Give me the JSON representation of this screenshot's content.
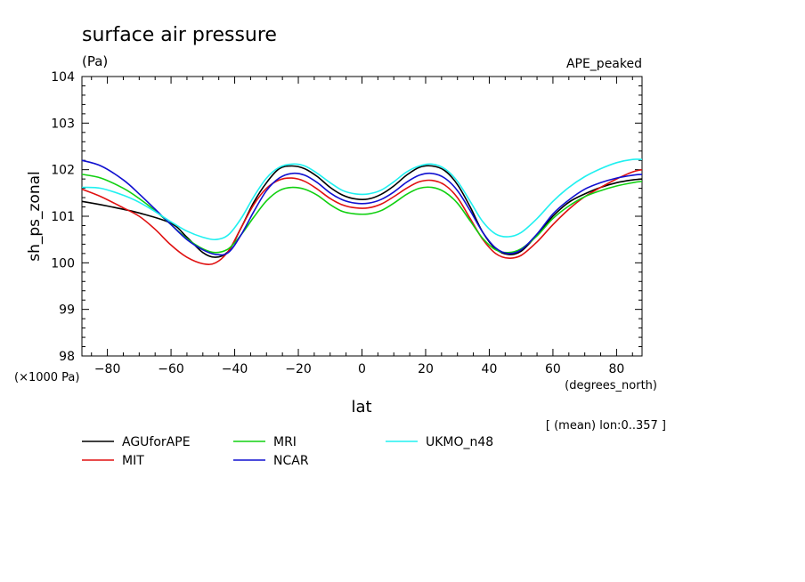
{
  "chart_data": {
    "type": "line",
    "title": "surface air pressure",
    "units": "(Pa)",
    "experiment": "APE_peaked",
    "xlabel": "lat",
    "ylabel": "sh_ps_zonal",
    "x_units": "(degrees_north)",
    "y_scale_note": "(×1000 Pa)",
    "averaging_note": "[ (mean) lon:0..357 ]",
    "xlim": [
      -88,
      88
    ],
    "ylim": [
      98,
      104
    ],
    "x_ticks": [
      -80,
      -60,
      -40,
      -20,
      0,
      20,
      40,
      60,
      80
    ],
    "y_ticks": [
      98,
      99,
      100,
      101,
      102,
      103,
      104
    ],
    "grid": false,
    "legend_position": "bottom",
    "series": [
      {
        "name": "AGUforAPE",
        "color": "#000000",
        "points": [
          [
            -88,
            101.32
          ],
          [
            -80,
            101.22
          ],
          [
            -70,
            101.07
          ],
          [
            -60,
            100.85
          ],
          [
            -55,
            100.55
          ],
          [
            -50,
            100.22
          ],
          [
            -46,
            100.12
          ],
          [
            -42,
            100.25
          ],
          [
            -38,
            100.75
          ],
          [
            -34,
            101.3
          ],
          [
            -30,
            101.72
          ],
          [
            -26,
            102.02
          ],
          [
            -22,
            102.08
          ],
          [
            -18,
            102.02
          ],
          [
            -14,
            101.85
          ],
          [
            -10,
            101.62
          ],
          [
            -6,
            101.45
          ],
          [
            -2,
            101.37
          ],
          [
            2,
            101.37
          ],
          [
            6,
            101.47
          ],
          [
            10,
            101.65
          ],
          [
            14,
            101.88
          ],
          [
            18,
            102.05
          ],
          [
            22,
            102.08
          ],
          [
            26,
            101.98
          ],
          [
            30,
            101.68
          ],
          [
            34,
            101.2
          ],
          [
            38,
            100.65
          ],
          [
            42,
            100.3
          ],
          [
            46,
            100.18
          ],
          [
            50,
            100.25
          ],
          [
            55,
            100.6
          ],
          [
            60,
            101.0
          ],
          [
            65,
            101.3
          ],
          [
            70,
            101.48
          ],
          [
            75,
            101.62
          ],
          [
            80,
            101.72
          ],
          [
            85,
            101.78
          ],
          [
            88,
            101.8
          ]
        ]
      },
      {
        "name": "MIT",
        "color": "#e01010",
        "points": [
          [
            -88,
            101.58
          ],
          [
            -82,
            101.42
          ],
          [
            -75,
            101.18
          ],
          [
            -70,
            101.0
          ],
          [
            -65,
            100.72
          ],
          [
            -60,
            100.38
          ],
          [
            -55,
            100.12
          ],
          [
            -50,
            99.98
          ],
          [
            -46,
            100.0
          ],
          [
            -42,
            100.25
          ],
          [
            -38,
            100.75
          ],
          [
            -34,
            101.25
          ],
          [
            -30,
            101.6
          ],
          [
            -26,
            101.78
          ],
          [
            -22,
            101.82
          ],
          [
            -18,
            101.75
          ],
          [
            -14,
            101.58
          ],
          [
            -10,
            101.38
          ],
          [
            -6,
            101.24
          ],
          [
            -2,
            101.18
          ],
          [
            2,
            101.18
          ],
          [
            6,
            101.26
          ],
          [
            10,
            101.42
          ],
          [
            14,
            101.6
          ],
          [
            18,
            101.74
          ],
          [
            22,
            101.77
          ],
          [
            26,
            101.67
          ],
          [
            30,
            101.4
          ],
          [
            34,
            100.95
          ],
          [
            38,
            100.5
          ],
          [
            42,
            100.2
          ],
          [
            46,
            100.1
          ],
          [
            50,
            100.16
          ],
          [
            55,
            100.45
          ],
          [
            60,
            100.82
          ],
          [
            65,
            101.15
          ],
          [
            70,
            101.42
          ],
          [
            75,
            101.62
          ],
          [
            80,
            101.8
          ],
          [
            85,
            101.95
          ],
          [
            88,
            102.0
          ]
        ]
      },
      {
        "name": "MRI",
        "color": "#10d010",
        "points": [
          [
            -88,
            101.9
          ],
          [
            -82,
            101.82
          ],
          [
            -75,
            101.6
          ],
          [
            -70,
            101.38
          ],
          [
            -65,
            101.12
          ],
          [
            -60,
            100.82
          ],
          [
            -55,
            100.52
          ],
          [
            -50,
            100.3
          ],
          [
            -46,
            100.22
          ],
          [
            -42,
            100.3
          ],
          [
            -38,
            100.6
          ],
          [
            -34,
            100.98
          ],
          [
            -30,
            101.33
          ],
          [
            -26,
            101.55
          ],
          [
            -22,
            101.62
          ],
          [
            -18,
            101.58
          ],
          [
            -14,
            101.45
          ],
          [
            -10,
            101.25
          ],
          [
            -6,
            101.1
          ],
          [
            -2,
            101.05
          ],
          [
            2,
            101.05
          ],
          [
            6,
            101.12
          ],
          [
            10,
            101.28
          ],
          [
            14,
            101.47
          ],
          [
            18,
            101.6
          ],
          [
            22,
            101.62
          ],
          [
            26,
            101.52
          ],
          [
            30,
            101.28
          ],
          [
            34,
            100.9
          ],
          [
            38,
            100.52
          ],
          [
            42,
            100.28
          ],
          [
            46,
            100.22
          ],
          [
            50,
            100.3
          ],
          [
            55,
            100.58
          ],
          [
            60,
            100.95
          ],
          [
            65,
            101.22
          ],
          [
            70,
            101.42
          ],
          [
            75,
            101.55
          ],
          [
            80,
            101.65
          ],
          [
            85,
            101.72
          ],
          [
            88,
            101.75
          ]
        ]
      },
      {
        "name": "NCAR",
        "color": "#1010d0",
        "points": [
          [
            -88,
            102.2
          ],
          [
            -82,
            102.08
          ],
          [
            -75,
            101.78
          ],
          [
            -70,
            101.48
          ],
          [
            -65,
            101.15
          ],
          [
            -60,
            100.82
          ],
          [
            -55,
            100.5
          ],
          [
            -50,
            100.28
          ],
          [
            -46,
            100.18
          ],
          [
            -42,
            100.22
          ],
          [
            -38,
            100.6
          ],
          [
            -34,
            101.1
          ],
          [
            -30,
            101.55
          ],
          [
            -26,
            101.82
          ],
          [
            -22,
            101.92
          ],
          [
            -18,
            101.88
          ],
          [
            -14,
            101.72
          ],
          [
            -10,
            101.5
          ],
          [
            -6,
            101.35
          ],
          [
            -2,
            101.28
          ],
          [
            2,
            101.28
          ],
          [
            6,
            101.36
          ],
          [
            10,
            101.52
          ],
          [
            14,
            101.73
          ],
          [
            18,
            101.88
          ],
          [
            22,
            101.92
          ],
          [
            26,
            101.82
          ],
          [
            30,
            101.55
          ],
          [
            34,
            101.12
          ],
          [
            38,
            100.65
          ],
          [
            42,
            100.32
          ],
          [
            46,
            100.2
          ],
          [
            50,
            100.28
          ],
          [
            55,
            100.62
          ],
          [
            60,
            101.05
          ],
          [
            65,
            101.35
          ],
          [
            70,
            101.58
          ],
          [
            75,
            101.72
          ],
          [
            80,
            101.82
          ],
          [
            85,
            101.88
          ],
          [
            88,
            101.9
          ]
        ]
      },
      {
        "name": "UKMO_n48",
        "color": "#20f0f0",
        "points": [
          [
            -88,
            101.62
          ],
          [
            -82,
            101.6
          ],
          [
            -75,
            101.45
          ],
          [
            -70,
            101.3
          ],
          [
            -65,
            101.1
          ],
          [
            -60,
            100.88
          ],
          [
            -55,
            100.68
          ],
          [
            -50,
            100.55
          ],
          [
            -46,
            100.5
          ],
          [
            -42,
            100.6
          ],
          [
            -38,
            100.95
          ],
          [
            -34,
            101.42
          ],
          [
            -30,
            101.82
          ],
          [
            -26,
            102.05
          ],
          [
            -22,
            102.12
          ],
          [
            -18,
            102.08
          ],
          [
            -14,
            101.92
          ],
          [
            -10,
            101.72
          ],
          [
            -6,
            101.55
          ],
          [
            -2,
            101.48
          ],
          [
            2,
            101.48
          ],
          [
            6,
            101.56
          ],
          [
            10,
            101.74
          ],
          [
            14,
            101.95
          ],
          [
            18,
            102.08
          ],
          [
            22,
            102.12
          ],
          [
            26,
            102.02
          ],
          [
            30,
            101.75
          ],
          [
            34,
            101.32
          ],
          [
            38,
            100.88
          ],
          [
            42,
            100.62
          ],
          [
            46,
            100.56
          ],
          [
            50,
            100.65
          ],
          [
            55,
            100.95
          ],
          [
            60,
            101.32
          ],
          [
            65,
            101.62
          ],
          [
            70,
            101.85
          ],
          [
            75,
            102.02
          ],
          [
            80,
            102.15
          ],
          [
            85,
            102.22
          ],
          [
            88,
            102.22
          ]
        ]
      }
    ]
  }
}
